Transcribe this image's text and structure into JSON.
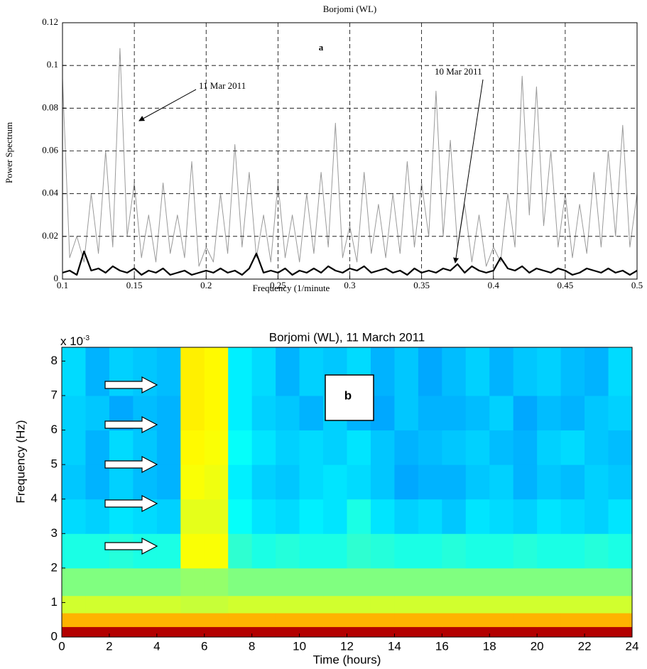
{
  "chart_data": [
    {
      "type": "line",
      "title": "Borjomi (WL)",
      "xlabel": "Frequency (1/minute",
      "ylabel": "Power Spectrum",
      "annotations": [
        "a"
      ],
      "x": [
        0.1,
        0.105,
        0.11,
        0.115,
        0.12,
        0.125,
        0.13,
        0.135,
        0.14,
        0.145,
        0.15,
        0.155,
        0.16,
        0.165,
        0.17,
        0.175,
        0.18,
        0.185,
        0.19,
        0.195,
        0.2,
        0.205,
        0.21,
        0.215,
        0.22,
        0.225,
        0.23,
        0.235,
        0.24,
        0.245,
        0.25,
        0.255,
        0.26,
        0.265,
        0.27,
        0.275,
        0.28,
        0.285,
        0.29,
        0.295,
        0.3,
        0.305,
        0.31,
        0.315,
        0.32,
        0.325,
        0.33,
        0.335,
        0.34,
        0.345,
        0.35,
        0.355,
        0.36,
        0.365,
        0.37,
        0.375,
        0.38,
        0.385,
        0.39,
        0.395,
        0.4,
        0.405,
        0.41,
        0.415,
        0.42,
        0.425,
        0.43,
        0.435,
        0.44,
        0.445,
        0.45,
        0.455,
        0.46,
        0.465,
        0.47,
        0.475,
        0.48,
        0.485,
        0.49,
        0.495,
        0.5
      ],
      "series": [
        {
          "name": "11 Mar 2011",
          "color": "#9a9a9a",
          "width": 1,
          "values": [
            0.094,
            0.01,
            0.02,
            0.008,
            0.04,
            0.012,
            0.06,
            0.015,
            0.108,
            0.02,
            0.045,
            0.01,
            0.03,
            0.008,
            0.045,
            0.012,
            0.03,
            0.01,
            0.055,
            0.006,
            0.015,
            0.008,
            0.04,
            0.012,
            0.063,
            0.015,
            0.05,
            0.01,
            0.03,
            0.008,
            0.045,
            0.01,
            0.03,
            0.008,
            0.04,
            0.012,
            0.05,
            0.015,
            0.073,
            0.01,
            0.025,
            0.008,
            0.05,
            0.012,
            0.035,
            0.01,
            0.04,
            0.012,
            0.055,
            0.015,
            0.045,
            0.02,
            0.088,
            0.02,
            0.065,
            0.015,
            0.035,
            0.008,
            0.03,
            0.006,
            0.015,
            0.008,
            0.04,
            0.015,
            0.095,
            0.03,
            0.09,
            0.025,
            0.06,
            0.015,
            0.04,
            0.01,
            0.035,
            0.012,
            0.05,
            0.015,
            0.06,
            0.02,
            0.072,
            0.015,
            0.04
          ]
        },
        {
          "name": "10 Mar 2011",
          "color": "#000000",
          "width": 2.2,
          "values": [
            0.003,
            0.004,
            0.002,
            0.013,
            0.004,
            0.005,
            0.003,
            0.006,
            0.004,
            0.003,
            0.005,
            0.002,
            0.004,
            0.003,
            0.005,
            0.002,
            0.003,
            0.004,
            0.002,
            0.003,
            0.004,
            0.003,
            0.005,
            0.003,
            0.004,
            0.002,
            0.005,
            0.012,
            0.003,
            0.004,
            0.003,
            0.005,
            0.002,
            0.004,
            0.003,
            0.005,
            0.003,
            0.006,
            0.004,
            0.003,
            0.005,
            0.004,
            0.006,
            0.003,
            0.004,
            0.005,
            0.003,
            0.004,
            0.002,
            0.005,
            0.003,
            0.004,
            0.003,
            0.005,
            0.004,
            0.007,
            0.003,
            0.006,
            0.004,
            0.003,
            0.004,
            0.01,
            0.005,
            0.004,
            0.006,
            0.003,
            0.005,
            0.004,
            0.003,
            0.005,
            0.004,
            0.002,
            0.003,
            0.005,
            0.004,
            0.003,
            0.005,
            0.003,
            0.004,
            0.002,
            0.004
          ]
        }
      ],
      "xlim": [
        0.1,
        0.5
      ],
      "xticks": [
        0.1,
        0.15,
        0.2,
        0.25,
        0.3,
        0.35,
        0.4,
        0.45,
        0.5
      ],
      "ylim": [
        0,
        0.12
      ],
      "yticks": [
        0,
        0.02,
        0.04,
        0.06,
        0.08,
        0.1,
        0.12
      ],
      "grid": true
    },
    {
      "type": "heatmap",
      "title": "Borjomi (WL), 11 March 2011",
      "xlabel": "Time (hours)",
      "ylabel": "Frequency (Hz)",
      "annotations": [
        "b"
      ],
      "y_multiplier": {
        "base": "x 10",
        "exponent": "-3"
      },
      "colormap": "jet",
      "zlim": [
        0,
        1
      ],
      "xbins": [
        0,
        1,
        2,
        3,
        4,
        5,
        6,
        7,
        8,
        9,
        10,
        11,
        12,
        13,
        14,
        15,
        16,
        17,
        18,
        19,
        20,
        21,
        22,
        23,
        24
      ],
      "ybins": [
        0,
        0.3,
        0.7,
        1.2,
        2,
        3,
        4,
        5,
        6,
        7,
        8.4
      ],
      "z": [
        [
          0.95,
          0.95,
          0.95,
          0.95,
          0.95,
          0.95,
          0.95,
          0.95,
          0.95,
          0.95,
          0.95,
          0.95,
          0.95,
          0.95,
          0.95,
          0.95,
          0.95,
          0.95,
          0.95,
          0.95,
          0.95,
          0.95,
          0.95,
          0.95
        ],
        [
          0.7,
          0.7,
          0.7,
          0.7,
          0.7,
          0.7,
          0.7,
          0.7,
          0.7,
          0.7,
          0.7,
          0.7,
          0.7,
          0.7,
          0.7,
          0.7,
          0.7,
          0.7,
          0.7,
          0.7,
          0.7,
          0.7,
          0.7,
          0.7
        ],
        [
          0.58,
          0.58,
          0.58,
          0.58,
          0.58,
          0.57,
          0.57,
          0.58,
          0.58,
          0.58,
          0.58,
          0.58,
          0.58,
          0.58,
          0.58,
          0.58,
          0.58,
          0.58,
          0.58,
          0.58,
          0.58,
          0.58,
          0.58,
          0.58
        ],
        [
          0.5,
          0.5,
          0.5,
          0.5,
          0.5,
          0.52,
          0.52,
          0.5,
          0.5,
          0.5,
          0.5,
          0.5,
          0.5,
          0.5,
          0.5,
          0.5,
          0.5,
          0.5,
          0.5,
          0.5,
          0.5,
          0.5,
          0.5,
          0.5
        ],
        [
          0.4,
          0.4,
          0.41,
          0.4,
          0.4,
          0.62,
          0.62,
          0.42,
          0.4,
          0.41,
          0.4,
          0.4,
          0.42,
          0.41,
          0.4,
          0.4,
          0.41,
          0.4,
          0.4,
          0.41,
          0.4,
          0.4,
          0.41,
          0.4
        ],
        [
          0.34,
          0.33,
          0.35,
          0.34,
          0.33,
          0.6,
          0.6,
          0.38,
          0.35,
          0.34,
          0.36,
          0.35,
          0.4,
          0.35,
          0.33,
          0.34,
          0.32,
          0.35,
          0.34,
          0.33,
          0.35,
          0.34,
          0.33,
          0.35
        ],
        [
          0.32,
          0.3,
          0.33,
          0.31,
          0.3,
          0.62,
          0.61,
          0.36,
          0.33,
          0.32,
          0.34,
          0.35,
          0.34,
          0.32,
          0.29,
          0.3,
          0.3,
          0.32,
          0.33,
          0.3,
          0.32,
          0.31,
          0.33,
          0.32
        ],
        [
          0.33,
          0.3,
          0.34,
          0.32,
          0.3,
          0.63,
          0.62,
          0.38,
          0.35,
          0.33,
          0.34,
          0.33,
          0.35,
          0.32,
          0.3,
          0.31,
          0.32,
          0.33,
          0.31,
          0.3,
          0.33,
          0.34,
          0.32,
          0.31
        ],
        [
          0.33,
          0.32,
          0.29,
          0.31,
          0.3,
          0.64,
          0.63,
          0.36,
          0.33,
          0.32,
          0.3,
          0.33,
          0.3,
          0.29,
          0.32,
          0.3,
          0.3,
          0.31,
          0.33,
          0.29,
          0.31,
          0.3,
          0.32,
          0.33
        ],
        [
          0.34,
          0.3,
          0.33,
          0.32,
          0.31,
          0.64,
          0.63,
          0.36,
          0.34,
          0.3,
          0.33,
          0.32,
          0.34,
          0.3,
          0.32,
          0.29,
          0.31,
          0.33,
          0.3,
          0.32,
          0.33,
          0.31,
          0.3,
          0.34
        ]
      ],
      "xlim": [
        0,
        24
      ],
      "xticks": [
        0,
        2,
        4,
        6,
        8,
        10,
        12,
        14,
        16,
        18,
        20,
        22,
        24
      ],
      "ylim": [
        0,
        8.4
      ],
      "yticks": [
        0,
        1,
        2,
        3,
        4,
        5,
        6,
        7,
        8
      ],
      "grid": false
    }
  ]
}
